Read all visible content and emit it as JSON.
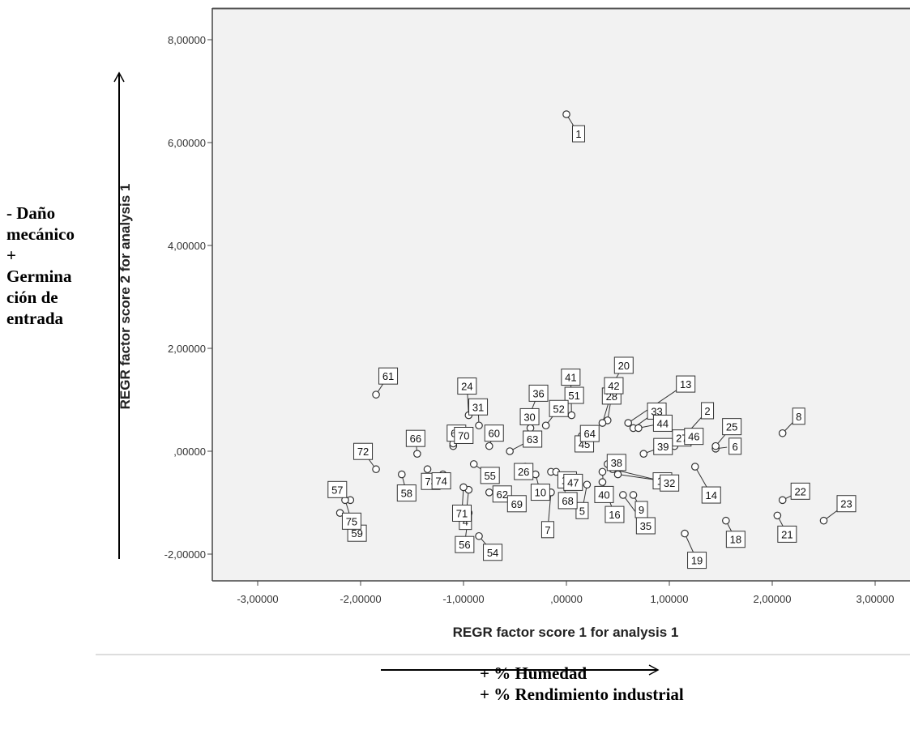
{
  "chart_data": {
    "type": "scatter",
    "xlabel": "REGR factor score   1 for analysis 1",
    "ylabel": "REGR factor score   2 for analysis 1",
    "xlim": [
      -3.3,
      3.3
    ],
    "ylim": [
      -2.55,
      8.5
    ],
    "x_ticks": [
      -3,
      -2,
      -1,
      0,
      1,
      2,
      3
    ],
    "x_tick_labels": [
      "-3,00000",
      "-2,00000",
      "-1,00000",
      ",00000",
      "1,00000",
      "2,00000",
      "3,00000"
    ],
    "y_ticks": [
      -2,
      0,
      2,
      4,
      6,
      8
    ],
    "y_tick_labels": [
      "-2,00000",
      ",00000",
      "2,00000",
      "4,00000",
      "6,00000",
      "8,00000"
    ],
    "grid": false,
    "marker": "open-circle",
    "points": [
      {
        "label": "1",
        "x": 0.0,
        "y": 6.55
      },
      {
        "label": "2",
        "x": 1.15,
        "y": 0.3
      },
      {
        "label": "4",
        "x": -0.95,
        "y": -0.75
      },
      {
        "label": "5",
        "x": 0.2,
        "y": -0.65
      },
      {
        "label": "6",
        "x": 1.45,
        "y": 0.05
      },
      {
        "label": "7",
        "x": -0.15,
        "y": -0.8
      },
      {
        "label": "8",
        "x": 2.1,
        "y": 0.35
      },
      {
        "label": "9",
        "x": 0.65,
        "y": -0.85
      },
      {
        "label": "10",
        "x": -0.3,
        "y": -0.45
      },
      {
        "label": "11",
        "x": 0.5,
        "y": -0.45
      },
      {
        "label": "12",
        "x": -0.15,
        "y": -0.4
      },
      {
        "label": "13",
        "x": 0.6,
        "y": 0.55
      },
      {
        "label": "14",
        "x": 1.25,
        "y": -0.3
      },
      {
        "label": "16",
        "x": 0.35,
        "y": -0.6
      },
      {
        "label": "18",
        "x": 1.55,
        "y": -1.35
      },
      {
        "label": "19",
        "x": 1.15,
        "y": -1.6
      },
      {
        "label": "20",
        "x": 0.4,
        "y": 1.15
      },
      {
        "label": "21",
        "x": 2.05,
        "y": -1.25
      },
      {
        "label": "22",
        "x": 2.1,
        "y": -0.95
      },
      {
        "label": "23",
        "x": 2.5,
        "y": -1.35
      },
      {
        "label": "24",
        "x": -0.95,
        "y": 0.7
      },
      {
        "label": "25",
        "x": 1.45,
        "y": 0.1
      },
      {
        "label": "26",
        "x": -0.4,
        "y": -0.3
      },
      {
        "label": "27",
        "x": 1.05,
        "y": 0.1
      },
      {
        "label": "28",
        "x": 0.4,
        "y": 0.6
      },
      {
        "label": "30",
        "x": -0.35,
        "y": 0.45
      },
      {
        "label": "31",
        "x": -0.85,
        "y": 0.5
      },
      {
        "label": "32",
        "x": 0.45,
        "y": -0.35
      },
      {
        "label": "33",
        "x": 0.65,
        "y": 0.45
      },
      {
        "label": "35",
        "x": 0.55,
        "y": -0.85
      },
      {
        "label": "36",
        "x": -0.35,
        "y": 0.75
      },
      {
        "label": "38",
        "x": 0.4,
        "y": -0.25
      },
      {
        "label": "39",
        "x": 0.75,
        "y": -0.05
      },
      {
        "label": "40",
        "x": 0.35,
        "y": -0.4
      },
      {
        "label": "41",
        "x": 0.05,
        "y": 0.7
      },
      {
        "label": "42",
        "x": 0.35,
        "y": 0.55
      },
      {
        "label": "44",
        "x": 0.7,
        "y": 0.45
      },
      {
        "label": "45",
        "x": 0.15,
        "y": 0.3
      },
      {
        "label": "46",
        "x": 0.9,
        "y": 0.1
      },
      {
        "label": "47",
        "x": -0.1,
        "y": -0.4
      },
      {
        "label": "51",
        "x": -0.05,
        "y": 0.85
      },
      {
        "label": "52",
        "x": -0.2,
        "y": 0.5
      },
      {
        "label": "54",
        "x": -0.85,
        "y": -1.65
      },
      {
        "label": "55",
        "x": -0.9,
        "y": -0.25
      },
      {
        "label": "56",
        "x": -0.95,
        "y": -1.2
      },
      {
        "label": "57",
        "x": -2.1,
        "y": -0.95
      },
      {
        "label": "58",
        "x": -1.6,
        "y": -0.45
      },
      {
        "label": "59",
        "x": -2.2,
        "y": -1.2
      },
      {
        "label": "60",
        "x": -0.75,
        "y": 0.1
      },
      {
        "label": "61",
        "x": -1.85,
        "y": 1.1
      },
      {
        "label": "62",
        "x": -0.75,
        "y": -0.8
      },
      {
        "label": "63",
        "x": -0.55,
        "y": 0.0
      },
      {
        "label": "64",
        "x": 0.25,
        "y": 0.25
      },
      {
        "label": "66",
        "x": -1.45,
        "y": -0.05
      },
      {
        "label": "67",
        "x": -1.1,
        "y": 0.1
      },
      {
        "label": "68",
        "x": -0.05,
        "y": -0.55
      },
      {
        "label": "69",
        "x": -0.6,
        "y": -0.8
      },
      {
        "label": "70",
        "x": -1.1,
        "y": 0.15
      },
      {
        "label": "71",
        "x": -1.0,
        "y": -0.7
      },
      {
        "label": "72",
        "x": -1.85,
        "y": -0.35
      },
      {
        "label": "73",
        "x": -1.35,
        "y": -0.35
      },
      {
        "label": "74",
        "x": -1.2,
        "y": -0.45
      },
      {
        "label": "75",
        "x": -2.15,
        "y": -0.95
      }
    ]
  },
  "annotations": {
    "left_lines": [
      "- Daño",
      "mecánico",
      "+",
      "Germina",
      "ción de",
      "entrada"
    ],
    "bottom_lines": [
      "+ % Humedad",
      "+ % Rendimiento industrial"
    ]
  }
}
